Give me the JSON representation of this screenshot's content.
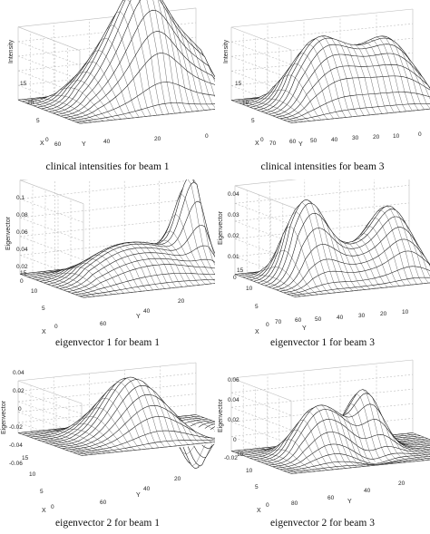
{
  "figure": {
    "panels": [
      {
        "id": "p1",
        "caption": "clinical intensities for beam 1",
        "zlabel": "Intensity",
        "ylabel": "Y",
        "xlabel": "X",
        "zticks": [],
        "yticks": [
          "60",
          "40",
          "20",
          "0"
        ],
        "xticks": [
          "15",
          "10",
          "5",
          "0"
        ]
      },
      {
        "id": "p2",
        "caption": "clinical intensities for beam 3",
        "zlabel": "Intensity",
        "ylabel": "Y",
        "xlabel": "X",
        "zticks": [],
        "yticks": [
          "70",
          "60",
          "50",
          "40",
          "30",
          "20",
          "10",
          "0"
        ],
        "xticks": [
          "15",
          "10",
          "5",
          "0"
        ]
      },
      {
        "id": "p3",
        "caption": "eigenvector 1 for beam 1",
        "zlabel": "Eigenvector",
        "ylabel": "Y",
        "xlabel": "X",
        "zticks": [
          "0.1",
          "0.08",
          "0.06",
          "0.04",
          "0.02",
          "0"
        ],
        "yticks": [
          "60",
          "40",
          "20"
        ],
        "xticks": [
          "15",
          "10",
          "5",
          "0"
        ]
      },
      {
        "id": "p4",
        "caption": "eigenvector 1 for beam 3",
        "zlabel": "Eigenvector",
        "ylabel": "Y",
        "xlabel": "X",
        "zticks": [
          "0.04",
          "0.03",
          "0.02",
          "0.01",
          "0"
        ],
        "yticks": [
          "70",
          "60",
          "50",
          "40",
          "30",
          "20",
          "10"
        ],
        "xticks": [
          "15",
          "10",
          "5",
          "0"
        ]
      },
      {
        "id": "p5",
        "caption": "eigenvector 2 for beam 1",
        "zlabel": "Eigenvector",
        "ylabel": "Y",
        "xlabel": "X",
        "zticks": [
          "0.04",
          "0.02",
          "0",
          "-0.02",
          "-0.04",
          "-0.06"
        ],
        "yticks": [
          "60",
          "40",
          "20"
        ],
        "xticks": [
          "15",
          "10",
          "5",
          "0"
        ]
      },
      {
        "id": "p6",
        "caption": "eigenvector 2 for beam 3",
        "zlabel": "Eigenvector",
        "ylabel": "Y",
        "xlabel": "X",
        "zticks": [
          "0.06",
          "0.04",
          "0.02",
          "0",
          "-0.02"
        ],
        "yticks": [
          "80",
          "60",
          "40",
          "20"
        ],
        "xticks": [
          "15",
          "10",
          "5",
          "0"
        ]
      }
    ]
  }
}
